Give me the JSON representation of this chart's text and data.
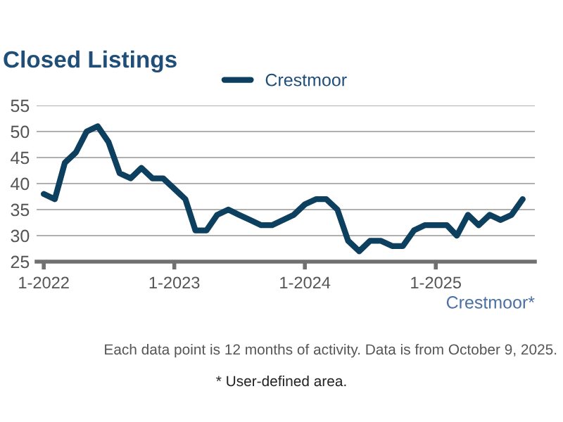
{
  "chart_data": {
    "type": "line",
    "title": "Closed Listings",
    "xlabel": "Crestmoor*",
    "x": [
      "2022-01",
      "2022-02",
      "2022-03",
      "2022-04",
      "2022-05",
      "2022-06",
      "2022-07",
      "2022-08",
      "2022-09",
      "2022-10",
      "2022-11",
      "2022-12",
      "2023-01",
      "2023-02",
      "2023-03",
      "2023-04",
      "2023-05",
      "2023-06",
      "2023-07",
      "2023-08",
      "2023-09",
      "2023-10",
      "2023-11",
      "2023-12",
      "2024-01",
      "2024-02",
      "2024-03",
      "2024-04",
      "2024-05",
      "2024-06",
      "2024-07",
      "2024-08",
      "2024-09",
      "2024-10",
      "2024-11",
      "2024-12",
      "2025-01",
      "2025-02",
      "2025-03",
      "2025-04",
      "2025-05",
      "2025-06",
      "2025-07",
      "2025-08",
      "2025-09"
    ],
    "series": [
      {
        "name": "Crestmoor",
        "color": "#0d3f5f",
        "values": [
          38,
          37,
          44,
          46,
          50,
          51,
          48,
          42,
          41,
          43,
          41,
          41,
          39,
          37,
          31,
          31,
          34,
          35,
          34,
          33,
          32,
          32,
          33,
          34,
          36,
          37,
          37,
          35,
          29,
          27,
          29,
          29,
          28,
          28,
          31,
          32,
          32,
          32,
          30,
          34,
          32,
          34,
          33,
          34,
          37
        ]
      }
    ],
    "xlim": [
      "2021-12-12",
      "2025-10-05"
    ],
    "xticks": [
      {
        "value": "2022-01-01",
        "label": "1-2022"
      },
      {
        "value": "2023-01-01",
        "label": "1-2023"
      },
      {
        "value": "2024-01-01",
        "label": "1-2024"
      },
      {
        "value": "2025-01-01",
        "label": "1-2025"
      }
    ],
    "ylim": [
      25,
      55
    ],
    "yticks": [
      25,
      30,
      35,
      40,
      45,
      50,
      55
    ],
    "grid": "y",
    "legend": "top",
    "marker": "none",
    "line_style": "solid",
    "annotations": [
      "Each data point is 12 months of activity. Data is from October 9, 2025.",
      "* User-defined area."
    ]
  }
}
